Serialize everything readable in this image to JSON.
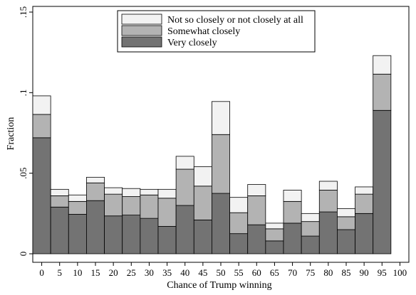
{
  "chart_data": {
    "type": "bar",
    "stacked": true,
    "xlabel": "Chance of Trump winning",
    "ylabel": "Fraction",
    "xlim": [
      -2.5,
      102.5
    ],
    "ylim": [
      0,
      0.15
    ],
    "x_ticks": [
      0,
      5,
      10,
      15,
      20,
      25,
      30,
      35,
      40,
      45,
      50,
      55,
      60,
      65,
      70,
      75,
      80,
      85,
      90,
      95,
      100
    ],
    "y_ticks": [
      0,
      0.05,
      0.1,
      0.15
    ],
    "y_tick_labels": [
      "0",
      ".05",
      ".1",
      ".15"
    ],
    "categories": [
      "0",
      "5",
      "10",
      "15",
      "20",
      "25",
      "30",
      "35",
      "40",
      "45",
      "50",
      "55",
      "60",
      "65",
      "70",
      "75",
      "80",
      "85",
      "90",
      "95",
      "100"
    ],
    "bin_width": 5,
    "legend_position": "top-center",
    "series": [
      {
        "name": "Very closely",
        "color": "#737373",
        "values": [
          0.072,
          0.029,
          0.0245,
          0.033,
          0.0235,
          0.024,
          0.022,
          0.017,
          0.03,
          0.021,
          0.0375,
          0.0125,
          0.018,
          0.008,
          0.019,
          0.011,
          0.026,
          0.015,
          0.025,
          0.089,
          0
        ]
      },
      {
        "name": "Somewhat closely",
        "color": "#b3b3b3",
        "values": [
          0.0145,
          0.007,
          0.008,
          0.011,
          0.0135,
          0.0115,
          0.0145,
          0.0175,
          0.0225,
          0.021,
          0.0365,
          0.013,
          0.018,
          0.0075,
          0.0135,
          0.009,
          0.0135,
          0.008,
          0.012,
          0.0225,
          0
        ]
      },
      {
        "name": "Not so closely or not closely at all",
        "color": "#f2f2f2",
        "values": [
          0.0115,
          0.004,
          0.004,
          0.0035,
          0.004,
          0.005,
          0.0035,
          0.0055,
          0.008,
          0.012,
          0.0205,
          0.0095,
          0.007,
          0.0035,
          0.007,
          0.005,
          0.0055,
          0.005,
          0.0045,
          0.0115,
          0
        ]
      }
    ],
    "legend_order": [
      "Not so closely or not closely at all",
      "Somewhat closely",
      "Very closely"
    ]
  }
}
